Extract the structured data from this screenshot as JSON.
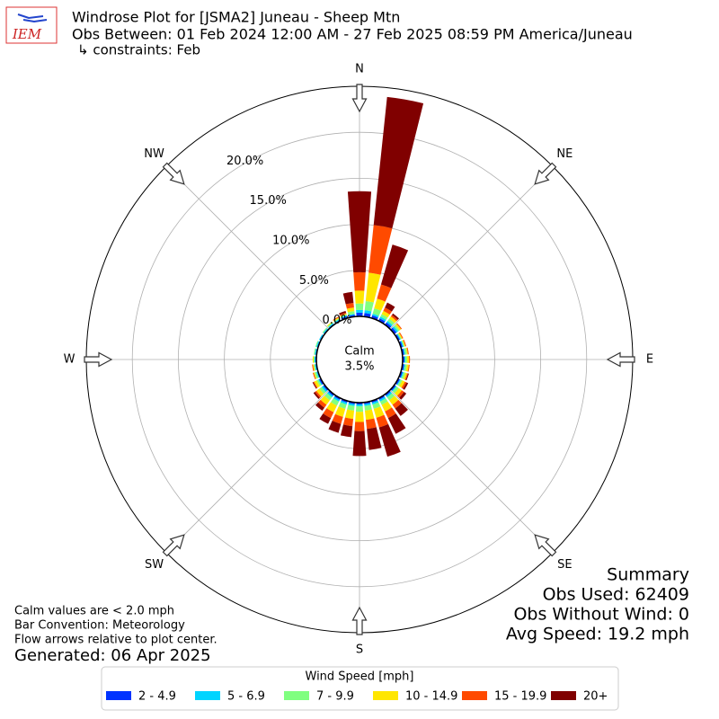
{
  "logo_text": "IEM",
  "chart_data": {
    "type": "windrose",
    "title": "Windrose Plot for [JSMA2] Juneau - Sheep Mtn",
    "subtitle": "Obs Between: 01 Feb 2024 12:00 AM - 27 Feb 2025 08:59 PM America/Juneau",
    "constraints": "↳ constraints: Feb",
    "x": [
      0,
      10,
      20,
      30,
      40,
      50,
      60,
      70,
      80,
      90,
      100,
      110,
      120,
      130,
      140,
      150,
      160,
      170,
      180,
      190,
      200,
      210,
      220,
      230,
      240,
      250,
      260,
      270,
      280,
      290,
      300,
      310,
      320,
      330,
      340,
      350
    ],
    "xticks": [
      {
        "value": 0,
        "label": "N"
      },
      {
        "value": 45,
        "label": "NE"
      },
      {
        "value": 90,
        "label": "E"
      },
      {
        "value": 135,
        "label": "SE"
      },
      {
        "value": 180,
        "label": "S"
      },
      {
        "value": 225,
        "label": "SW"
      },
      {
        "value": 270,
        "label": "W"
      },
      {
        "value": 315,
        "label": "NW"
      }
    ],
    "ylim": [
      0,
      25
    ],
    "yticks": [
      {
        "value": 0,
        "label": "0.0%"
      },
      {
        "value": 5,
        "label": "5.0%"
      },
      {
        "value": 10,
        "label": "10.0%"
      },
      {
        "value": 15,
        "label": "15.0%"
      },
      {
        "value": 20,
        "label": "20.0%"
      }
    ],
    "grid": true,
    "calm": {
      "label": "Calm",
      "value": 3.5,
      "value_label": "3.5%"
    },
    "legend_title": "Wind Speed [mph]",
    "series": [
      {
        "name": "2 - 4.9",
        "color": "#0033ff",
        "values": [
          0.4,
          0.4,
          0.3,
          0.3,
          0.3,
          0.3,
          0.2,
          0.2,
          0.2,
          0.2,
          0.2,
          0.2,
          0.2,
          0.2,
          0.2,
          0.2,
          0.2,
          0.2,
          0.2,
          0.2,
          0.2,
          0.2,
          0.2,
          0.2,
          0.2,
          0.1,
          0.1,
          0.1,
          0.1,
          0.1,
          0.1,
          0.1,
          0.1,
          0.1,
          0.2,
          0.2
        ]
      },
      {
        "name": "5 - 6.9",
        "color": "#00d4ff",
        "values": [
          0.3,
          0.3,
          0.2,
          0.2,
          0.2,
          0.2,
          0.1,
          0.1,
          0.1,
          0.1,
          0.1,
          0.1,
          0.1,
          0.1,
          0.2,
          0.2,
          0.2,
          0.2,
          0.2,
          0.2,
          0.2,
          0.2,
          0.2,
          0.2,
          0.1,
          0.1,
          0.1,
          0.1,
          0.1,
          0.1,
          0.1,
          0.1,
          0.1,
          0.1,
          0.1,
          0.1
        ]
      },
      {
        "name": "7 - 9.9",
        "color": "#80ff80",
        "values": [
          0.7,
          1.0,
          0.6,
          0.3,
          0.3,
          0.2,
          0.1,
          0.1,
          0.2,
          0.2,
          0.2,
          0.2,
          0.2,
          0.3,
          0.4,
          0.4,
          0.5,
          0.5,
          0.6,
          0.5,
          0.5,
          0.5,
          0.4,
          0.3,
          0.2,
          0.2,
          0.1,
          0.1,
          0.1,
          0.1,
          0.0,
          0.1,
          0.1,
          0.1,
          0.1,
          0.3
        ]
      },
      {
        "name": "10 - 14.9",
        "color": "#ffe600",
        "values": [
          1.4,
          3.1,
          1.1,
          0.4,
          0.3,
          0.2,
          0.1,
          0.1,
          0.1,
          0.2,
          0.2,
          0.2,
          0.3,
          0.4,
          0.6,
          0.8,
          1.0,
          1.0,
          1.1,
          0.9,
          0.9,
          0.8,
          0.6,
          0.4,
          0.3,
          0.1,
          0.1,
          0.1,
          0.0,
          0.0,
          0.0,
          0.0,
          0.1,
          0.1,
          0.1,
          0.4
        ]
      },
      {
        "name": "15 - 19.9",
        "color": "#ff4a00",
        "values": [
          2.0,
          5.2,
          1.6,
          0.4,
          0.2,
          0.1,
          0.1,
          0.1,
          0.1,
          0.1,
          0.1,
          0.1,
          0.2,
          0.3,
          0.5,
          0.8,
          1.1,
          1.0,
          1.0,
          0.8,
          0.8,
          0.7,
          0.4,
          0.2,
          0.1,
          0.1,
          0.1,
          0.0,
          0.0,
          0.0,
          0.0,
          0.0,
          0.0,
          0.1,
          0.1,
          0.5
        ]
      },
      {
        "name": "20+",
        "color": "#800000",
        "values": [
          8.8,
          14.0,
          4.5,
          0.6,
          0.2,
          0.0,
          0.0,
          0.0,
          0.0,
          0.0,
          0.0,
          0.1,
          0.2,
          0.3,
          1.0,
          1.9,
          3.3,
          2.3,
          2.7,
          1.2,
          1.0,
          0.7,
          0.4,
          0.2,
          0.1,
          0.0,
          0.0,
          0.0,
          0.0,
          0.0,
          0.0,
          0.0,
          0.0,
          0.0,
          0.2,
          1.2
        ]
      }
    ],
    "notes": [
      "Calm values are < 2.0 mph",
      "Bar Convention: Meteorology",
      "Flow arrows relative to plot center."
    ],
    "generated": "Generated: 06 Apr 2025",
    "summary": [
      "Summary",
      "Obs Used: 62409",
      "Obs Without Wind: 0",
      "Avg Speed: 19.2 mph"
    ]
  }
}
